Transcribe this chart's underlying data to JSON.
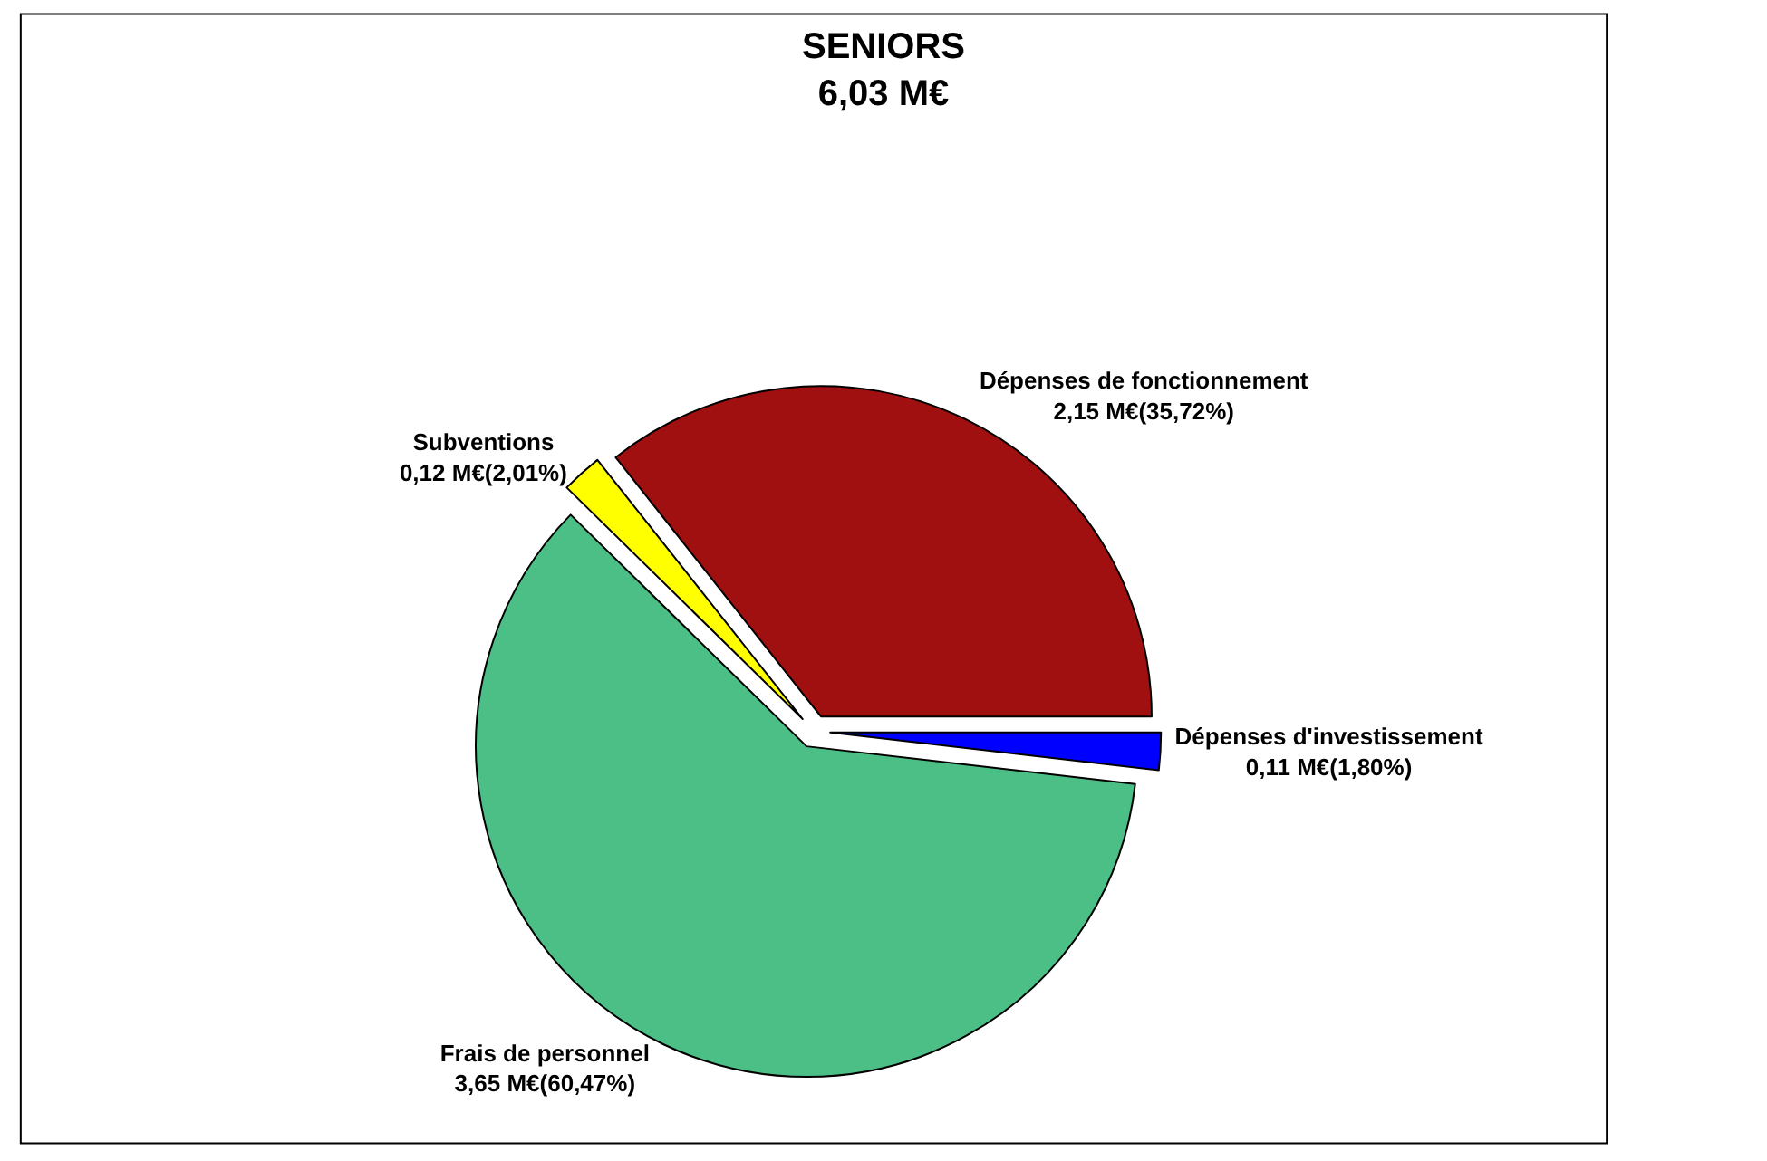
{
  "chart_data": {
    "type": "pie",
    "title": "SENIORS",
    "subtitle": "6,03 M€",
    "categories": [
      "Dépenses d'investissement",
      "Dépenses de fonctionnement",
      "Subventions",
      "Frais de personnel"
    ],
    "values": [
      0.11,
      2.15,
      0.12,
      3.65
    ],
    "value_labels": [
      "0,11 M€(1,80%)",
      "2,15 M€(35,72%)",
      "0,12 M€(2,01%)",
      "3,65 M€(60,47%)"
    ],
    "colors": [
      "#0000ff",
      "#a01010",
      "#ffff00",
      "#4cbf87"
    ],
    "legend": false
  }
}
